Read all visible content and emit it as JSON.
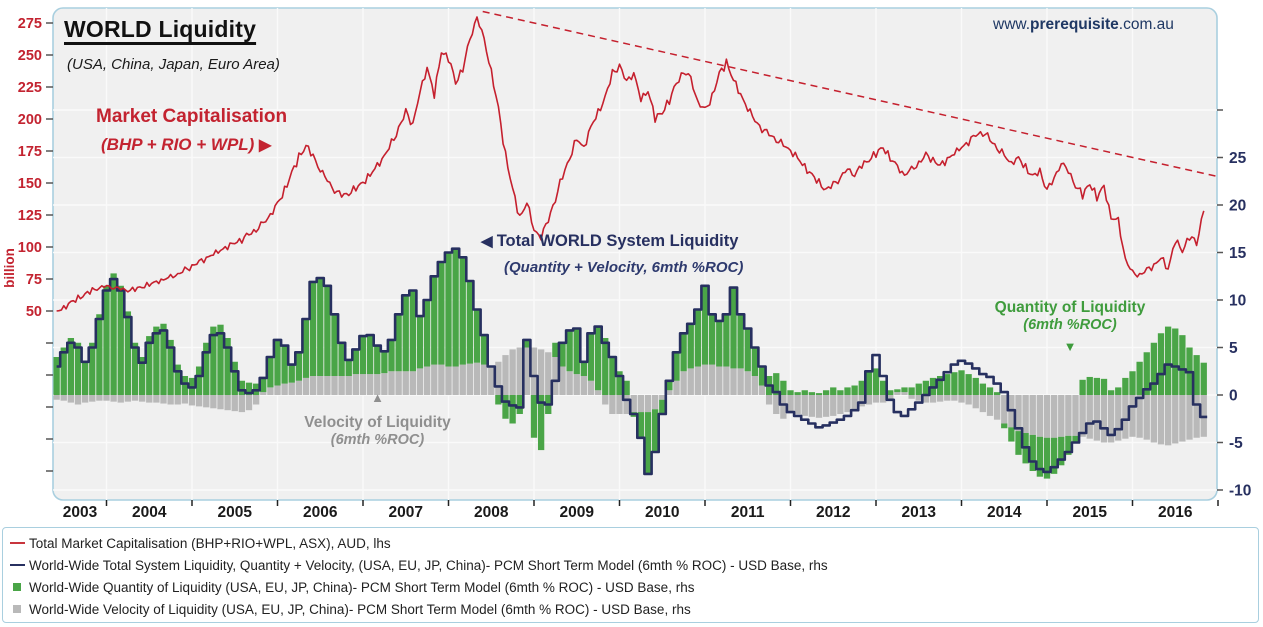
{
  "header": {
    "title": "WORLD Liquidity",
    "subtitle": "(USA, China, Japan, Euro Area)",
    "website_prefix": "www.",
    "website_bold": "prerequisite",
    "website_suffix": ".com.au"
  },
  "annotations": {
    "market_cap": {
      "line1": "Market Capitalisation",
      "line2": "(BHP + RIO + WPL) ",
      "arrow": "▶"
    },
    "total_liquidity": {
      "arrow": "◀ ",
      "line1": "Total WORLD System Liquidity",
      "line2": "(Quantity + Velocity, 6mth %ROC)"
    },
    "quantity": {
      "line1": "Quantity of Liquidity",
      "line2": "(6mth %ROC)",
      "arrow": "▼"
    },
    "velocity": {
      "arrow": "▲",
      "line1": "Velocity of Liquidity",
      "line2": "(6mth %ROC)"
    }
  },
  "legend": [
    {
      "marker": "line",
      "color": "#c8353d",
      "label": "Total Market Capitalisation (BHP+RIO+WPL, ASX), AUD, lhs"
    },
    {
      "marker": "line",
      "color": "#273060",
      "label": "World-Wide Total System Liquidity, Quantity + Velocity, (USA, EU, JP, China)- PCM Short Term Model (6mth % ROC)  - USD Base, rhs"
    },
    {
      "marker": "square",
      "color": "#4aa547",
      "label": "World-Wide Quantity of Liquidity (USA, EU, JP, China)- PCM Short Term Model (6mth % ROC)  - USD Base, rhs"
    },
    {
      "marker": "square",
      "color": "#b9b9b9",
      "label": "World-Wide Velocity of Liquidity (USA, EU, JP, China)- PCM Short Term Model (6mth % ROC)  - USD Base, rhs"
    }
  ],
  "colors": {
    "red": "#c5202e",
    "navy": "#273060",
    "green": "#4aa547",
    "gray_bar": "#b9b9b9",
    "frame": "#a9cfdf",
    "plot_bg": "#f0f0f0",
    "grid": "#fafafa",
    "left_axis_text": "#c32330",
    "right_axis_text": "#273060",
    "x_axis_text": "#1a1a1a"
  },
  "chart_data": {
    "type": "combo",
    "frequency": "monthly",
    "x_start": "2003-06",
    "x_end": "2016-11",
    "x_axis": {
      "year_labels": [
        2003,
        2004,
        2005,
        2006,
        2007,
        2008,
        2009,
        2010,
        2011,
        2012,
        2013,
        2014,
        2015,
        2016
      ]
    },
    "left_axis": {
      "title": "billion",
      "labeled_ticks": [
        275,
        250,
        225,
        200,
        175,
        150,
        125,
        100,
        75,
        50
      ],
      "unlabeled_ticks": [
        25,
        0,
        -25,
        -50,
        -75
      ]
    },
    "right_axis": {
      "labeled_ticks": [
        25,
        20,
        15,
        10,
        5,
        0,
        -5,
        -10
      ],
      "unlabeled_ticks": [
        30
      ]
    },
    "trendline": {
      "style": "dashed",
      "color": "#c5202e",
      "from": {
        "t": 2008.4,
        "value": 284
      },
      "to": {
        "t": 2017.6,
        "value": 146
      }
    },
    "series": [
      {
        "name": "Total Market Capitalisation (BHP+RIO+WPL, ASX), AUD",
        "type": "line",
        "axis": "lhs",
        "color": "#c5202e",
        "values": [
          50,
          53,
          57,
          60,
          63,
          66,
          68,
          69,
          68,
          67,
          66,
          67,
          69,
          71,
          73,
          75,
          77,
          79,
          82,
          85,
          88,
          91,
          94,
          97,
          100,
          103,
          106,
          110,
          114,
          119,
          126,
          134,
          145,
          158,
          170,
          179,
          170,
          160,
          151,
          144,
          140,
          142,
          146,
          151,
          157,
          164,
          172,
          181,
          193,
          205,
          196,
          220,
          240,
          218,
          252,
          248,
          228,
          240,
          262,
          281,
          262,
          238,
          208,
          172,
          145,
          122,
          135,
          112,
          108,
          120,
          138,
          155,
          170,
          185,
          178,
          195,
          205,
          218,
          235,
          242,
          228,
          236,
          214,
          222,
          200,
          205,
          215,
          228,
          238,
          232,
          214,
          207,
          218,
          235,
          244,
          230,
          218,
          208,
          198,
          192,
          188,
          184,
          180,
          176,
          170,
          163,
          157,
          150,
          145,
          148,
          154,
          160,
          156,
          163,
          168,
          173,
          178,
          170,
          163,
          157,
          161,
          166,
          172,
          168,
          163,
          168,
          173,
          177,
          182,
          187,
          190,
          184,
          178,
          172,
          166,
          170,
          162,
          156,
          158,
          145,
          152,
          166,
          158,
          148,
          140,
          150,
          139,
          148,
          123,
          121,
          91,
          80,
          78,
          82,
          85,
          91,
          82,
          105,
          96,
          109,
          102,
          130
        ]
      },
      {
        "name": "World-Wide Total System Liquidity, Quantity + Velocity (6mth % ROC)",
        "type": "step-line",
        "axis": "rhs",
        "color": "#273060",
        "values": [
          3,
          4.5,
          5.5,
          5,
          3.5,
          5,
          8,
          11,
          12.2,
          11,
          8.2,
          5,
          3.4,
          5.5,
          6.5,
          6.8,
          5,
          2.5,
          1.2,
          0.8,
          2,
          4.5,
          6.3,
          6.5,
          5,
          2.5,
          0.5,
          0.2,
          0.5,
          1.8,
          4,
          5.8,
          5.2,
          3.2,
          4.5,
          8,
          11.9,
          12.3,
          11.5,
          8.5,
          5.5,
          3.7,
          4.8,
          6.2,
          6.3,
          5.2,
          4.6,
          5.8,
          8.5,
          10.5,
          11,
          8.3,
          10,
          12.5,
          14,
          15,
          15.4,
          14.5,
          12,
          9,
          6.3,
          3,
          0.9,
          -0.7,
          -1.1,
          -1.3,
          5.8,
          2,
          -0.8,
          -1,
          1.5,
          5.5,
          6.8,
          7,
          3.5,
          6.5,
          7.2,
          5.5,
          4,
          2,
          -0.5,
          -2,
          -4.5,
          -8.3,
          -6,
          -2,
          1.5,
          4.5,
          6.5,
          7.5,
          9,
          11.5,
          8.5,
          7.8,
          8.5,
          11.3,
          8.5,
          7,
          5,
          3,
          1,
          0.3,
          -1,
          -1.8,
          -2.2,
          -2.6,
          -3,
          -3.4,
          -3.2,
          -2.9,
          -2.6,
          -2.2,
          -1.6,
          -0.8,
          2.5,
          4.2,
          2,
          -0.5,
          -1.8,
          -2.2,
          -1.5,
          -0.8,
          0,
          0.8,
          1.6,
          2.4,
          3.2,
          3.6,
          3.3,
          2.8,
          2.2,
          1.9,
          1.2,
          0.3,
          -1.6,
          -3.5,
          -5.5,
          -7,
          -7.8,
          -8.1,
          -7.6,
          -6.8,
          -6,
          -5,
          -4,
          -3,
          -2.8,
          -3.5,
          -4.2,
          -3.6,
          -2.6,
          -1.2,
          -0.3,
          0.6,
          1.2,
          2.2,
          3.2,
          3,
          2.7,
          2.4,
          -1,
          -2.3
        ]
      },
      {
        "name": "World-Wide Quantity of Liquidity (6mth % ROC)",
        "type": "bar",
        "axis": "rhs",
        "color": "#4aa547",
        "values": [
          4,
          5,
          6,
          5.5,
          3.5,
          5.5,
          8.5,
          11.5,
          12.8,
          11.5,
          8.8,
          5.5,
          4,
          6.2,
          7.2,
          7.5,
          5.8,
          3.2,
          2,
          1.8,
          3,
          5.5,
          7.2,
          7.4,
          6,
          3.5,
          1.5,
          1.3,
          1.2,
          1.5,
          3.3,
          4.8,
          4,
          2,
          3,
          6.2,
          10,
          10.3,
          9.5,
          6.5,
          3.5,
          1.7,
          2.6,
          4,
          4.1,
          3,
          2.3,
          3.3,
          6,
          8,
          8.5,
          5.5,
          7,
          9.3,
          10.8,
          12,
          12.4,
          11.3,
          8.7,
          5.6,
          3.1,
          0,
          -1,
          -2.5,
          -3,
          -2,
          0.8,
          -4.5,
          -5.8,
          -2,
          1.5,
          2.5,
          4.3,
          4.8,
          1.5,
          5,
          6.7,
          6,
          4,
          2.5,
          1.5,
          -0.5,
          -2.7,
          -6.5,
          -4.5,
          -1.5,
          1,
          3,
          4,
          4.7,
          6,
          8.3,
          5.3,
          4.8,
          5.5,
          8.5,
          5.7,
          4.5,
          3,
          2,
          2,
          2.3,
          1.5,
          0.5,
          0.3,
          0.5,
          0.3,
          0.2,
          0.5,
          0.8,
          0.5,
          0.8,
          1,
          1.5,
          2.5,
          2.8,
          1.5,
          0.5,
          0.3,
          0.5,
          0.8,
          1.2,
          1.5,
          1.8,
          2,
          2.2,
          2.4,
          2.6,
          2.2,
          1.8,
          1.2,
          0.8,
          0.3,
          -0.5,
          -1.5,
          -2.5,
          -3.2,
          -3.8,
          -4.2,
          -4.3,
          -3.8,
          -3,
          -2,
          -0.8,
          1.6,
          1.9,
          1.8,
          1.7,
          0.5,
          0.8,
          1.8,
          2.5,
          3.5,
          4.5,
          5.5,
          6.5,
          7.2,
          7,
          6.3,
          5,
          4.2,
          3.4
        ]
      },
      {
        "name": "World-Wide Velocity of Liquidity (6mth % ROC)",
        "type": "bar",
        "axis": "rhs",
        "color": "#b9b9b9",
        "values": [
          -0.5,
          -0.6,
          -0.8,
          -1,
          -0.8,
          -0.7,
          -0.6,
          -0.6,
          -0.7,
          -0.8,
          -0.7,
          -0.6,
          -0.7,
          -0.8,
          -0.8,
          -0.9,
          -1,
          -1,
          -0.9,
          -1.1,
          -1.2,
          -1.3,
          -1.4,
          -1.5,
          -1.6,
          -1.7,
          -1.8,
          -1.6,
          -1,
          0.3,
          0.8,
          1,
          1.2,
          1.3,
          1.5,
          1.8,
          2,
          2,
          2,
          2,
          2,
          2,
          2.2,
          2.2,
          2.2,
          2.2,
          2.3,
          2.5,
          2.5,
          2.5,
          2.5,
          2.8,
          3,
          3.2,
          3.2,
          3,
          3,
          3.2,
          3.3,
          3.4,
          3.2,
          3,
          3.5,
          4.2,
          4.8,
          5,
          5,
          5,
          4.8,
          4.5,
          4,
          3,
          2.5,
          2.2,
          2,
          1.5,
          0.5,
          -1,
          -2,
          -2,
          -2,
          -1.8,
          -1.8,
          -1.8,
          -1.5,
          -0.5,
          0.5,
          1.5,
          2.5,
          2.8,
          3,
          3.2,
          3.2,
          3,
          3,
          2.8,
          2.8,
          2.5,
          2,
          1,
          -1,
          -2,
          -2.5,
          -1.8,
          -2,
          -2.2,
          -2.3,
          -2.4,
          -2.3,
          -2.2,
          -2,
          -1.8,
          -1.5,
          -1.2,
          -1,
          -0.8,
          -0.8,
          -0.6,
          0.3,
          0.3,
          -0.4,
          -0.6,
          -0.8,
          -0.8,
          -0.7,
          -0.6,
          -0.6,
          -0.8,
          -1,
          -1.4,
          -1.8,
          -2.2,
          -2.6,
          -3,
          -3.4,
          -3.8,
          -4,
          -4.2,
          -4.4,
          -4.5,
          -4.5,
          -4.4,
          -4.3,
          -4.3,
          -4.4,
          -4.6,
          -4.8,
          -5,
          -5,
          -4.8,
          -4.6,
          -4.4,
          -4.5,
          -4.7,
          -5,
          -5.2,
          -5.3,
          -5.1,
          -4.9,
          -4.7,
          -4.5,
          -4.4
        ]
      }
    ]
  }
}
